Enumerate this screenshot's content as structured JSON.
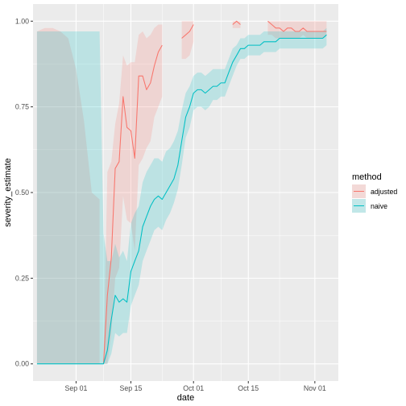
{
  "chart_data": {
    "type": "line",
    "xlabel": "date",
    "ylabel": "severity_estimate",
    "xlim": [
      "2020-08-21",
      "2020-11-07"
    ],
    "ylim": [
      -0.05,
      1.05
    ],
    "x_ticks": [
      {
        "date": "2020-09-01",
        "label": "Sep 01"
      },
      {
        "date": "2020-09-15",
        "label": "Sep 15"
      },
      {
        "date": "2020-10-01",
        "label": "Oct 01"
      },
      {
        "date": "2020-10-15",
        "label": "Oct 15"
      },
      {
        "date": "2020-11-01",
        "label": "Nov 01"
      }
    ],
    "y_ticks": [
      {
        "value": 0.0,
        "label": "0.00"
      },
      {
        "value": 0.25,
        "label": "0.25"
      },
      {
        "value": 0.5,
        "label": "0.50"
      },
      {
        "value": 0.75,
        "label": "0.75"
      },
      {
        "value": 1.0,
        "label": "1.00"
      }
    ],
    "grid": true,
    "legend": {
      "title": "method",
      "position": "right"
    },
    "series": [
      {
        "name": "adjusted",
        "color": "#F8766D",
        "segments": [
          {
            "x": [
              "2020-09-08",
              "2020-09-09",
              "2020-09-10",
              "2020-09-11",
              "2020-09-12",
              "2020-09-13",
              "2020-09-14",
              "2020-09-15",
              "2020-09-16",
              "2020-09-17",
              "2020-09-18",
              "2020-09-19",
              "2020-09-20",
              "2020-09-21",
              "2020-09-22",
              "2020-09-23",
              "2020-09-24",
              "2020-09-25"
            ],
            "y": [
              0.0,
              0.2,
              0.31,
              0.57,
              0.59,
              0.78,
              0.69,
              0.68,
              0.6,
              0.84,
              0.84,
              0.8,
              0.82,
              0.87,
              0.91,
              0.93,
              null,
              null
            ],
            "ymin": [
              0.0,
              0.0,
              0.09,
              0.25,
              0.28,
              0.49,
              0.42,
              0.41,
              0.33,
              0.58,
              0.6,
              0.63,
              0.65,
              0.72,
              0.75,
              0.78,
              null,
              null
            ],
            "ymax": [
              0.0,
              0.56,
              0.59,
              0.7,
              0.76,
              0.9,
              0.87,
              0.88,
              0.88,
              0.96,
              0.97,
              0.95,
              0.96,
              0.98,
              0.99,
              0.99,
              null,
              null
            ]
          },
          {
            "x": [
              "2020-09-28",
              "2020-09-29",
              "2020-09-30",
              "2020-10-01"
            ],
            "y": [
              0.95,
              0.96,
              0.97,
              0.99
            ],
            "ymin": [
              0.89,
              0.89,
              0.9,
              0.94
            ],
            "ymax": [
              1.0,
              1.0,
              1.0,
              1.0
            ]
          },
          {
            "x": [
              "2020-10-11",
              "2020-10-12",
              "2020-10-13"
            ],
            "y": [
              0.99,
              1.0,
              0.99
            ],
            "ymin": [
              0.98,
              0.98,
              0.98
            ],
            "ymax": [
              1.0,
              1.0,
              1.0
            ]
          },
          {
            "x": [
              "2020-10-20",
              "2020-10-21",
              "2020-10-22",
              "2020-10-23",
              "2020-10-24",
              "2020-10-25",
              "2020-10-26",
              "2020-10-27",
              "2020-10-28",
              "2020-10-29",
              "2020-10-30",
              "2020-10-31",
              "2020-11-01",
              "2020-11-02",
              "2020-11-03",
              "2020-11-04"
            ],
            "y": [
              1.0,
              0.99,
              0.98,
              0.98,
              0.97,
              0.98,
              0.98,
              0.97,
              0.97,
              0.98,
              0.97,
              0.97,
              0.97,
              0.97,
              0.97,
              0.97
            ],
            "ymin": [
              0.96,
              0.96,
              0.95,
              0.95,
              0.95,
              0.95,
              0.95,
              0.95,
              0.95,
              0.96,
              0.95,
              0.95,
              0.95,
              0.95,
              0.95,
              0.96
            ],
            "ymax": [
              1.0,
              1.0,
              1.0,
              1.0,
              1.0,
              1.0,
              1.0,
              1.0,
              1.0,
              1.0,
              1.0,
              1.0,
              1.0,
              1.0,
              1.0,
              1.0
            ]
          }
        ],
        "early_band": {
          "x": [
            "2020-08-22",
            "2020-08-24",
            "2020-08-26",
            "2020-08-28",
            "2020-08-30",
            "2020-09-01",
            "2020-09-03",
            "2020-09-05",
            "2020-09-07"
          ],
          "ymin": [
            0.0,
            0.0,
            0.0,
            0.0,
            0.0,
            0.0,
            0.0,
            0.0,
            0.0
          ],
          "ymax": [
            0.97,
            0.98,
            0.98,
            0.97,
            0.95,
            0.86,
            0.71,
            0.5,
            0.48
          ]
        }
      },
      {
        "name": "naive",
        "color": "#00BFC4",
        "x": [
          "2020-08-22",
          "2020-09-07",
          "2020-09-08",
          "2020-09-09",
          "2020-09-10",
          "2020-09-11",
          "2020-09-12",
          "2020-09-13",
          "2020-09-14",
          "2020-09-15",
          "2020-09-16",
          "2020-09-17",
          "2020-09-18",
          "2020-09-19",
          "2020-09-20",
          "2020-09-21",
          "2020-09-22",
          "2020-09-23",
          "2020-09-24",
          "2020-09-25",
          "2020-09-26",
          "2020-09-27",
          "2020-09-28",
          "2020-09-29",
          "2020-09-30",
          "2020-10-01",
          "2020-10-02",
          "2020-10-03",
          "2020-10-04",
          "2020-10-05",
          "2020-10-06",
          "2020-10-07",
          "2020-10-08",
          "2020-10-09",
          "2020-10-10",
          "2020-10-11",
          "2020-10-12",
          "2020-10-13",
          "2020-10-14",
          "2020-10-15",
          "2020-10-16",
          "2020-10-17",
          "2020-10-18",
          "2020-10-19",
          "2020-10-20",
          "2020-10-21",
          "2020-10-22",
          "2020-10-23",
          "2020-10-24",
          "2020-10-25",
          "2020-10-26",
          "2020-10-27",
          "2020-10-28",
          "2020-10-29",
          "2020-10-30",
          "2020-10-31",
          "2020-11-01",
          "2020-11-02",
          "2020-11-03",
          "2020-11-04"
        ],
        "y": [
          0.0,
          0.0,
          0.0,
          0.04,
          0.13,
          0.2,
          0.18,
          0.19,
          0.18,
          0.27,
          0.3,
          0.33,
          0.4,
          0.43,
          0.46,
          0.48,
          0.49,
          0.48,
          0.5,
          0.52,
          0.54,
          0.58,
          0.65,
          0.72,
          0.75,
          0.79,
          0.8,
          0.8,
          0.79,
          0.8,
          0.81,
          0.81,
          0.82,
          0.82,
          0.85,
          0.88,
          0.9,
          0.92,
          0.92,
          0.93,
          0.93,
          0.93,
          0.93,
          0.94,
          0.94,
          0.94,
          0.94,
          0.95,
          0.95,
          0.95,
          0.95,
          0.95,
          0.95,
          0.95,
          0.95,
          0.95,
          0.95,
          0.95,
          0.95,
          0.96
        ],
        "ymin": [
          0.0,
          0.0,
          0.0,
          0.0,
          0.03,
          0.09,
          0.08,
          0.09,
          0.09,
          0.17,
          0.2,
          0.23,
          0.3,
          0.33,
          0.36,
          0.39,
          0.4,
          0.39,
          0.42,
          0.44,
          0.47,
          0.51,
          0.58,
          0.66,
          0.69,
          0.74,
          0.75,
          0.75,
          0.74,
          0.75,
          0.77,
          0.77,
          0.78,
          0.78,
          0.81,
          0.84,
          0.87,
          0.89,
          0.89,
          0.9,
          0.9,
          0.9,
          0.9,
          0.91,
          0.91,
          0.91,
          0.91,
          0.92,
          0.92,
          0.92,
          0.92,
          0.92,
          0.92,
          0.92,
          0.92,
          0.92,
          0.92,
          0.92,
          0.92,
          0.93
        ],
        "ymax": [
          0.97,
          0.97,
          0.38,
          0.3,
          0.3,
          0.35,
          0.31,
          0.33,
          0.3,
          0.41,
          0.44,
          0.46,
          0.53,
          0.56,
          0.58,
          0.6,
          0.6,
          0.59,
          0.62,
          0.63,
          0.65,
          0.68,
          0.74,
          0.79,
          0.81,
          0.84,
          0.85,
          0.85,
          0.84,
          0.85,
          0.86,
          0.86,
          0.86,
          0.86,
          0.89,
          0.92,
          0.93,
          0.95,
          0.95,
          0.96,
          0.96,
          0.96,
          0.96,
          0.97,
          0.97,
          0.97,
          0.97,
          0.97,
          0.97,
          0.97,
          0.97,
          0.97,
          0.97,
          0.97,
          0.97,
          0.97,
          0.97,
          0.97,
          0.97,
          0.98
        ]
      }
    ]
  }
}
